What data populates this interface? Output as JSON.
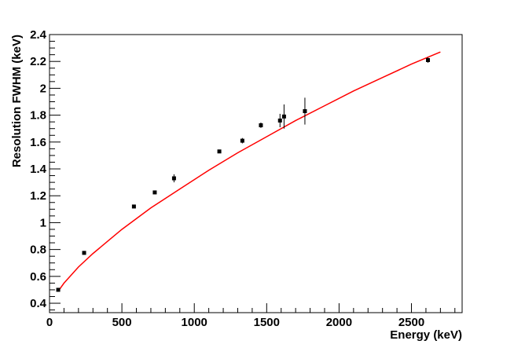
{
  "chart_data": {
    "type": "scatter",
    "title": "",
    "xlabel": "Energy (keV)",
    "ylabel": "Resolution FWHM (keV)",
    "xlim": [
      0,
      2850
    ],
    "ylim": [
      0.33,
      2.4
    ],
    "x_ticks": [
      0,
      500,
      1000,
      1500,
      2000,
      2500
    ],
    "x_tick_labels": [
      "0",
      "500",
      "1000",
      "1500",
      "2000",
      "2500"
    ],
    "y_ticks": [
      0.4,
      0.6,
      0.8,
      1.0,
      1.2,
      1.4,
      1.6,
      1.8,
      2.0,
      2.2,
      2.4
    ],
    "y_tick_labels": [
      "0.4",
      "0.6",
      "0.8",
      "1",
      "1.2",
      "1.4",
      "1.6",
      "1.8",
      "2",
      "2.2",
      "2.4"
    ],
    "grid": false,
    "points": [
      {
        "x": 60,
        "y": 0.5,
        "err": 0.01
      },
      {
        "x": 239,
        "y": 0.775,
        "err": 0.01
      },
      {
        "x": 583,
        "y": 1.12,
        "err": 0.01
      },
      {
        "x": 727,
        "y": 1.225,
        "err": 0.01
      },
      {
        "x": 860,
        "y": 1.33,
        "err": 0.03
      },
      {
        "x": 1173,
        "y": 1.53,
        "err": 0.01
      },
      {
        "x": 1332,
        "y": 1.61,
        "err": 0.02
      },
      {
        "x": 1460,
        "y": 1.725,
        "err": 0.02
      },
      {
        "x": 1592,
        "y": 1.76,
        "err": 0.05
      },
      {
        "x": 1620,
        "y": 1.79,
        "err": 0.09
      },
      {
        "x": 1764,
        "y": 1.83,
        "err": 0.1
      },
      {
        "x": 2614,
        "y": 2.21,
        "err": 0.02
      }
    ],
    "fit": {
      "x": [
        60,
        100,
        150,
        200,
        300,
        400,
        500,
        700,
        900,
        1100,
        1300,
        1500,
        1700,
        1900,
        2100,
        2300,
        2500,
        2700
      ],
      "y": [
        0.49,
        0.55,
        0.61,
        0.67,
        0.77,
        0.86,
        0.95,
        1.11,
        1.25,
        1.39,
        1.52,
        1.64,
        1.76,
        1.87,
        1.98,
        2.08,
        2.18,
        2.27
      ]
    },
    "colors": {
      "fit": "#ff0000",
      "points": "#000000",
      "axes": "#000000"
    }
  }
}
